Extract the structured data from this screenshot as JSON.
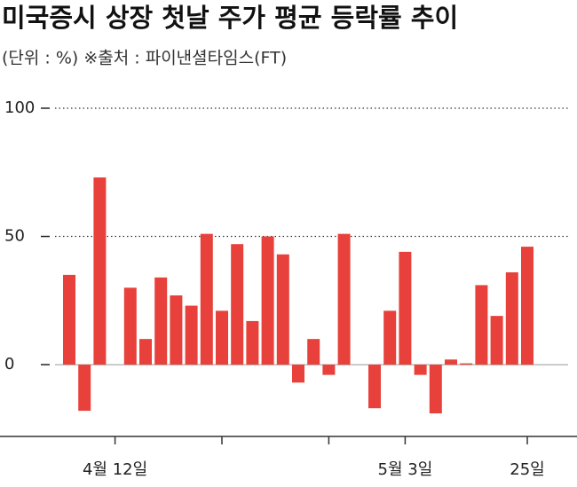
{
  "chart_data": {
    "type": "bar",
    "title": "미국증시 상장 첫날 주가 평균 등락률 추이",
    "subtitle": "(단위 : %)  ※출처 : 파이낸셜타임스(FT)",
    "categories": [
      null,
      null,
      null,
      "4월 12일",
      null,
      null,
      null,
      null,
      null,
      null,
      null,
      null,
      null,
      null,
      null,
      null,
      null,
      null,
      null,
      null,
      null,
      null,
      "5월 3일",
      null,
      null,
      null,
      null,
      null,
      null,
      null,
      "25일"
    ],
    "values": [
      35,
      -18,
      73,
      null,
      30,
      10,
      34,
      27,
      23,
      51,
      21,
      47,
      17,
      50,
      43,
      -7,
      10,
      -4,
      51,
      null,
      -17,
      21,
      44,
      -4,
      -19,
      2,
      0.5,
      31,
      19,
      36,
      46
    ],
    "color": "#e8403a",
    "ylim": [
      -28,
      100
    ],
    "yticks": [
      0,
      50,
      100
    ],
    "grid": true
  }
}
